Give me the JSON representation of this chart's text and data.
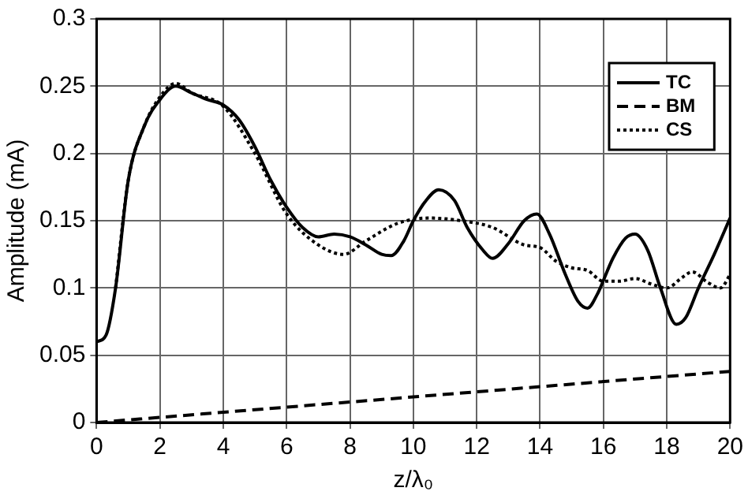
{
  "chart_data": {
    "type": "line",
    "xlabel": "z/λ₀",
    "ylabel": "Amplitude (mA)",
    "xlim": [
      0,
      20
    ],
    "xticks": [
      0,
      2,
      4,
      6,
      8,
      10,
      12,
      14,
      16,
      18,
      20
    ],
    "ylim": [
      0,
      0.3
    ],
    "yticks": [
      0,
      0.05,
      0.1,
      0.15,
      0.2,
      0.25,
      0.3
    ],
    "grid": true,
    "legend": "top right",
    "marker": "none",
    "series": [
      {
        "name": "TC",
        "color": "#000000",
        "line_style": "solid",
        "x": [
          0,
          0.3,
          0.6,
          1,
          1.5,
          2,
          2.5,
          3,
          3.5,
          4,
          4.5,
          5,
          5.5,
          6,
          6.5,
          7,
          7.5,
          8,
          8.5,
          9,
          9.3,
          9.7,
          10,
          10.4,
          10.8,
          11.3,
          11.7,
          12.2,
          12.5,
          13,
          13.5,
          13.9,
          14.3,
          14.8,
          15.2,
          15.5,
          15.8,
          16.3,
          16.7,
          17,
          17.4,
          17.8,
          18.3,
          18.6,
          19,
          19.5,
          20
        ],
        "values": [
          0.06,
          0.065,
          0.1,
          0.18,
          0.22,
          0.24,
          0.25,
          0.245,
          0.24,
          0.236,
          0.225,
          0.205,
          0.18,
          0.16,
          0.145,
          0.138,
          0.14,
          0.138,
          0.132,
          0.125,
          0.124,
          0.135,
          0.15,
          0.165,
          0.173,
          0.165,
          0.145,
          0.128,
          0.122,
          0.133,
          0.15,
          0.155,
          0.14,
          0.11,
          0.09,
          0.085,
          0.095,
          0.122,
          0.137,
          0.14,
          0.128,
          0.1,
          0.073,
          0.078,
          0.1,
          0.125,
          0.152
        ]
      },
      {
        "name": "BM",
        "color": "#000000",
        "line_style": "dashed",
        "x": [
          0,
          20
        ],
        "values": [
          0,
          0.038
        ]
      },
      {
        "name": "CS",
        "color": "#000000",
        "line_style": "dotted",
        "x": [
          0.6,
          1,
          1.5,
          2,
          2.5,
          3,
          4,
          5,
          6,
          7,
          7.8,
          8.5,
          9.5,
          10.5,
          11.5,
          12.5,
          13.5,
          14,
          14.5,
          15,
          15.5,
          16,
          16.5,
          17,
          17.5,
          18,
          18.5,
          18.8,
          19.3,
          19.7,
          20
        ],
        "values": [
          0.1,
          0.18,
          0.22,
          0.242,
          0.252,
          0.245,
          0.235,
          0.2,
          0.155,
          0.132,
          0.125,
          0.135,
          0.148,
          0.152,
          0.15,
          0.145,
          0.132,
          0.13,
          0.12,
          0.115,
          0.113,
          0.105,
          0.105,
          0.107,
          0.103,
          0.1,
          0.108,
          0.112,
          0.104,
          0.1,
          0.11
        ]
      }
    ]
  }
}
